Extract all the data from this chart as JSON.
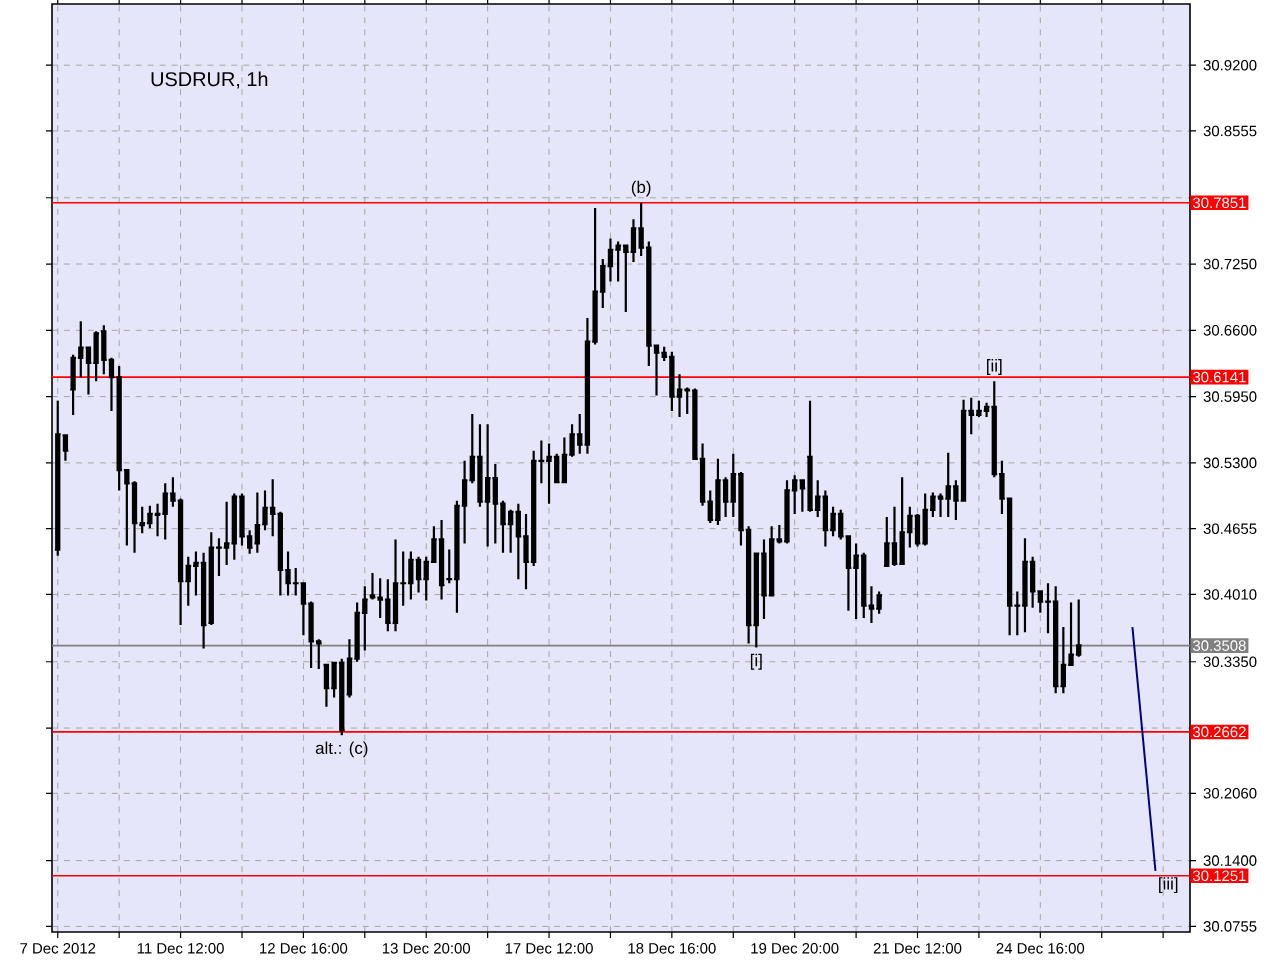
{
  "chart_data": {
    "type": "candlestick",
    "title": "USDRUR, 1h",
    "color": "#000000",
    "grid": true,
    "categories": [
      "7 Dec 2012",
      null,
      null,
      null,
      null,
      null,
      null,
      null,
      null,
      null,
      null,
      null,
      null,
      null,
      null,
      null,
      "11 Dec 12:00",
      null,
      null,
      null,
      null,
      null,
      null,
      null,
      null,
      null,
      null,
      null,
      null,
      null,
      null,
      null,
      "12 Dec 16:00",
      null,
      null,
      null,
      null,
      null,
      null,
      null,
      null,
      null,
      null,
      null,
      null,
      null,
      null,
      null,
      "13 Dec 20:00",
      null,
      null,
      null,
      null,
      null,
      null,
      null,
      null,
      null,
      null,
      null,
      null,
      null,
      null,
      null,
      "17 Dec 12:00",
      null,
      null,
      null,
      null,
      null,
      null,
      null,
      null,
      null,
      null,
      null,
      null,
      null,
      null,
      null,
      "18 Dec 16:00",
      null,
      null,
      null,
      null,
      null,
      null,
      null,
      null,
      null,
      null,
      null,
      null,
      null,
      null,
      null,
      "19 Dec 20:00",
      null,
      null,
      null,
      null,
      null,
      null,
      null,
      null,
      null,
      null,
      null,
      null,
      null,
      null,
      null,
      "21 Dec 12:00",
      null,
      null,
      null,
      null,
      null,
      null,
      null,
      null,
      null,
      null,
      null,
      null,
      null,
      null,
      null,
      "24 Dec 16:00",
      null,
      null,
      null,
      null,
      null,
      null,
      null,
      null,
      null,
      null,
      null,
      null,
      null,
      null,
      null,
      null,
      null,
      null,
      null
    ],
    "ohlc": [
      [
        30.445,
        30.591,
        30.439,
        30.558
      ],
      [
        30.557,
        30.558,
        30.532,
        30.542
      ],
      [
        30.602,
        30.636,
        30.577,
        30.633
      ],
      [
        30.633,
        30.669,
        30.614,
        30.643
      ],
      [
        30.643,
        30.644,
        30.597,
        30.628
      ],
      [
        30.628,
        30.659,
        30.61,
        30.657
      ],
      [
        30.659,
        30.665,
        30.617,
        30.631
      ],
      [
        30.631,
        30.633,
        30.581,
        30.614
      ],
      [
        30.614,
        30.625,
        30.503,
        30.523
      ],
      [
        30.523,
        30.523,
        30.449,
        30.51
      ],
      [
        30.51,
        30.512,
        30.442,
        30.471
      ],
      [
        30.469,
        30.487,
        30.461,
        30.471
      ],
      [
        30.471,
        30.488,
        30.466,
        30.48
      ],
      [
        30.479,
        30.49,
        30.458,
        30.48
      ],
      [
        30.48,
        30.51,
        30.455,
        30.5
      ],
      [
        30.5,
        30.516,
        30.487,
        30.493
      ],
      [
        30.493,
        30.495,
        30.371,
        30.414
      ],
      [
        30.414,
        30.438,
        30.39,
        30.429
      ],
      [
        30.429,
        30.443,
        30.4,
        30.432
      ],
      [
        30.432,
        30.442,
        30.348,
        30.371
      ],
      [
        30.373,
        30.462,
        30.371,
        30.447
      ],
      [
        30.447,
        30.456,
        30.419,
        30.447
      ],
      [
        30.447,
        30.492,
        30.43,
        30.451
      ],
      [
        30.451,
        30.5,
        30.435,
        30.497
      ],
      [
        30.497,
        30.5,
        30.449,
        30.458
      ],
      [
        30.458,
        30.464,
        30.441,
        30.447
      ],
      [
        30.451,
        30.501,
        30.442,
        30.469
      ],
      [
        30.47,
        30.503,
        30.464,
        30.486
      ],
      [
        30.486,
        30.514,
        30.458,
        30.48
      ],
      [
        30.48,
        30.482,
        30.4,
        30.425
      ],
      [
        30.425,
        30.443,
        30.4,
        30.412
      ],
      [
        30.412,
        30.427,
        30.4,
        30.412
      ],
      [
        30.412,
        30.412,
        30.361,
        30.392
      ],
      [
        30.392,
        30.394,
        30.329,
        30.355
      ],
      [
        30.355,
        30.357,
        30.328,
        30.353
      ],
      [
        30.332,
        30.333,
        30.291,
        30.309
      ],
      [
        30.309,
        30.335,
        30.3,
        30.334
      ],
      [
        30.334,
        30.338,
        30.263,
        30.268
      ],
      [
        30.303,
        30.357,
        30.3,
        30.338
      ],
      [
        30.338,
        30.393,
        30.335,
        30.383
      ],
      [
        30.383,
        30.409,
        30.346,
        30.396
      ],
      [
        30.4,
        30.422,
        30.396,
        30.398
      ],
      [
        30.398,
        30.417,
        30.378,
        30.396
      ],
      [
        30.396,
        30.416,
        30.365,
        30.373
      ],
      [
        30.373,
        30.455,
        30.365,
        30.412
      ],
      [
        30.412,
        30.443,
        30.39,
        30.412
      ],
      [
        30.412,
        30.443,
        30.396,
        30.435
      ],
      [
        30.435,
        30.438,
        30.403,
        30.416
      ],
      [
        30.416,
        30.438,
        30.395,
        30.433
      ],
      [
        30.433,
        30.468,
        30.432,
        30.455
      ],
      [
        30.455,
        30.474,
        30.396,
        30.41
      ],
      [
        30.416,
        30.445,
        30.412,
        30.416
      ],
      [
        30.416,
        30.493,
        30.383,
        30.488
      ],
      [
        30.488,
        30.532,
        30.451,
        30.513
      ],
      [
        30.513,
        30.578,
        30.51,
        30.536
      ],
      [
        30.536,
        30.568,
        30.487,
        30.492
      ],
      [
        30.492,
        30.568,
        30.448,
        30.515
      ],
      [
        30.515,
        30.529,
        30.451,
        30.49
      ],
      [
        30.49,
        30.493,
        30.442,
        30.47
      ],
      [
        30.47,
        30.484,
        30.442,
        30.482
      ],
      [
        30.482,
        30.49,
        30.416,
        30.458
      ],
      [
        30.458,
        30.48,
        30.406,
        30.433
      ],
      [
        30.433,
        30.542,
        30.429,
        30.532
      ],
      [
        30.532,
        30.552,
        30.51,
        30.532
      ],
      [
        30.532,
        30.549,
        30.49,
        30.536
      ],
      [
        30.536,
        30.539,
        30.51,
        30.511
      ],
      [
        30.511,
        30.555,
        30.51,
        30.538
      ],
      [
        30.538,
        30.568,
        30.536,
        30.558
      ],
      [
        30.558,
        30.578,
        30.539,
        30.548
      ],
      [
        30.548,
        30.672,
        30.539,
        30.649
      ],
      [
        30.649,
        30.78,
        30.646,
        30.698
      ],
      [
        30.698,
        30.73,
        30.682,
        30.723
      ],
      [
        30.723,
        30.75,
        30.708,
        30.739
      ],
      [
        30.739,
        30.747,
        30.708,
        30.743
      ],
      [
        30.743,
        30.743,
        30.678,
        30.737
      ],
      [
        30.737,
        30.769,
        30.727,
        30.76
      ],
      [
        30.76,
        30.785,
        30.733,
        30.741
      ],
      [
        30.741,
        30.747,
        30.625,
        30.645
      ],
      [
        30.645,
        30.646,
        30.596,
        30.638
      ],
      [
        30.638,
        30.644,
        30.63,
        30.634
      ],
      [
        30.634,
        30.639,
        30.581,
        30.595
      ],
      [
        30.595,
        30.617,
        30.575,
        30.602
      ],
      [
        30.602,
        30.604,
        30.578,
        30.601
      ],
      [
        30.601,
        30.603,
        30.534,
        30.534
      ],
      [
        30.534,
        30.549,
        30.488,
        30.492
      ],
      [
        30.492,
        30.503,
        30.471,
        30.474
      ],
      [
        30.474,
        30.534,
        30.469,
        30.513
      ],
      [
        30.513,
        30.516,
        30.477,
        30.492
      ],
      [
        30.492,
        30.539,
        30.477,
        30.519
      ],
      [
        30.519,
        30.521,
        30.449,
        30.464
      ],
      [
        30.464,
        30.468,
        30.353,
        30.371
      ],
      [
        30.371,
        30.442,
        30.349,
        30.441
      ],
      [
        30.441,
        30.455,
        30.377,
        30.4
      ],
      [
        30.4,
        30.468,
        30.4,
        30.455
      ],
      [
        30.455,
        30.469,
        30.451,
        30.453
      ],
      [
        30.453,
        30.513,
        30.451,
        30.503
      ],
      [
        30.503,
        30.518,
        30.48,
        30.513
      ],
      [
        30.513,
        30.514,
        30.482,
        30.505
      ],
      [
        30.536,
        30.591,
        30.482,
        30.484
      ],
      [
        30.484,
        30.513,
        30.477,
        30.497
      ],
      [
        30.497,
        30.503,
        30.448,
        30.464
      ],
      [
        30.464,
        30.487,
        30.458,
        30.48
      ],
      [
        30.48,
        30.484,
        30.455,
        30.458
      ],
      [
        30.458,
        30.458,
        30.385,
        30.427
      ],
      [
        30.427,
        30.451,
        30.377,
        30.439
      ],
      [
        30.439,
        30.442,
        30.378,
        30.39
      ],
      [
        30.39,
        30.409,
        30.373,
        30.387
      ],
      [
        30.387,
        30.404,
        30.382,
        30.4
      ],
      [
        30.429,
        30.477,
        30.429,
        30.451
      ],
      [
        30.451,
        30.487,
        30.429,
        30.431
      ],
      [
        30.431,
        30.516,
        30.431,
        30.462
      ],
      [
        30.462,
        30.487,
        30.447,
        30.478
      ],
      [
        30.478,
        30.48,
        30.448,
        30.451
      ],
      [
        30.451,
        30.5,
        30.449,
        30.484
      ],
      [
        30.484,
        30.501,
        30.477,
        30.497
      ],
      [
        30.497,
        30.5,
        30.477,
        30.495
      ],
      [
        30.495,
        30.54,
        30.477,
        30.507
      ],
      [
        30.507,
        30.513,
        30.474,
        30.493
      ],
      [
        30.493,
        30.592,
        30.493,
        30.581
      ],
      [
        30.581,
        30.594,
        30.558,
        30.577
      ],
      [
        30.577,
        30.591,
        30.575,
        30.581
      ],
      [
        30.581,
        30.589,
        30.575,
        30.585
      ],
      [
        30.585,
        30.61,
        30.516,
        30.519
      ],
      [
        30.519,
        30.532,
        30.48,
        30.495
      ],
      [
        30.495,
        30.495,
        30.361,
        30.39
      ],
      [
        30.39,
        30.404,
        30.361,
        30.39
      ],
      [
        30.39,
        30.456,
        30.364,
        30.433
      ],
      [
        30.433,
        30.438,
        30.388,
        30.404
      ],
      [
        30.404,
        30.404,
        30.383,
        30.394
      ],
      [
        30.394,
        30.412,
        30.363,
        30.394
      ],
      [
        30.394,
        30.409,
        30.304,
        30.311
      ],
      [
        30.311,
        30.369,
        30.304,
        30.332
      ],
      [
        30.332,
        30.393,
        30.332,
        30.342
      ],
      [
        30.342,
        30.396,
        30.34,
        30.351
      ],
      null,
      null,
      null,
      null,
      null,
      null,
      null,
      null,
      null,
      null,
      null,
      null,
      null,
      null
    ],
    "series": [
      {
        "type": "line",
        "color": "#000080",
        "values": [
          null,
          null,
          null,
          null,
          null,
          null,
          null,
          null,
          null,
          null,
          null,
          null,
          null,
          null,
          null,
          null,
          null,
          null,
          null,
          null,
          null,
          null,
          null,
          null,
          null,
          null,
          null,
          null,
          null,
          null,
          null,
          null,
          null,
          null,
          null,
          null,
          null,
          null,
          null,
          null,
          null,
          null,
          null,
          null,
          null,
          null,
          null,
          null,
          null,
          null,
          null,
          null,
          null,
          null,
          null,
          null,
          null,
          null,
          null,
          null,
          null,
          null,
          null,
          null,
          null,
          null,
          null,
          null,
          null,
          null,
          null,
          null,
          null,
          null,
          null,
          null,
          null,
          null,
          null,
          null,
          null,
          null,
          null,
          null,
          null,
          null,
          null,
          null,
          null,
          null,
          null,
          null,
          null,
          null,
          null,
          null,
          null,
          null,
          null,
          null,
          null,
          null,
          null,
          null,
          null,
          null,
          null,
          null,
          null,
          null,
          null,
          null,
          null,
          null,
          null,
          null,
          null,
          null,
          null,
          null,
          null,
          null,
          null,
          null,
          null,
          null,
          null,
          null,
          null,
          null,
          null,
          null,
          null,
          null,
          null,
          null,
          null,
          null,
          null,
          null,
          30.369,
          null,
          null,
          30.13,
          null,
          null,
          null,
          null
        ]
      }
    ],
    "ylim": [
      30.07,
      30.98
    ],
    "yticks": [
      {
        "value": 30.92,
        "label": "30.9200"
      },
      {
        "value": 30.8555,
        "label": "30.8555"
      },
      {
        "value": 30.79,
        "label": null
      },
      {
        "value": 30.725,
        "label": "30.7250"
      },
      {
        "value": 30.66,
        "label": "30.6600"
      },
      {
        "value": 30.595,
        "label": "30.5950"
      },
      {
        "value": 30.53,
        "label": "30.5300"
      },
      {
        "value": 30.4655,
        "label": "30.4655"
      },
      {
        "value": 30.401,
        "label": "30.4010"
      },
      {
        "value": 30.335,
        "label": "30.3350"
      },
      {
        "value": 30.27,
        "label": null
      },
      {
        "value": 30.206,
        "label": "30.2060"
      },
      {
        "value": 30.14,
        "label": "30.1400"
      },
      {
        "value": 30.0755,
        "label": "30.0755"
      }
    ],
    "ref_lines": [
      {
        "axis": "y",
        "value": 30.7851,
        "label": "30.7851",
        "color": "#ff0000"
      },
      {
        "axis": "y",
        "value": 30.6141,
        "label": "30.6141",
        "color": "#ff0000"
      },
      {
        "axis": "y",
        "value": 30.3508,
        "label": "30.3508",
        "color": "#808080"
      },
      {
        "axis": "y",
        "value": 30.2662,
        "label": "30.2662",
        "color": "#ff0000"
      },
      {
        "axis": "y",
        "value": 30.1251,
        "label": "30.1251",
        "color": "#ff0000"
      }
    ],
    "annotations": [
      {
        "text": "(b)",
        "y": 30.785
      },
      {
        "text": "[ii]",
        "y": 30.61
      },
      {
        "text": "[i]",
        "y": 30.349
      },
      {
        "text": "alt.: (c)",
        "y": 30.263
      },
      {
        "text": "[iii]",
        "y": 30.13
      }
    ]
  }
}
